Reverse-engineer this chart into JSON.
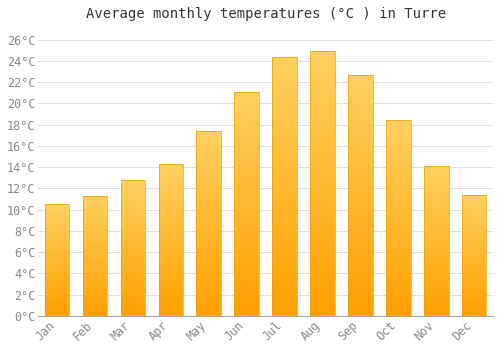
{
  "title": "Average monthly temperatures (°C ) in Turre",
  "months": [
    "Jan",
    "Feb",
    "Mar",
    "Apr",
    "May",
    "Jun",
    "Jul",
    "Aug",
    "Sep",
    "Oct",
    "Nov",
    "Dec"
  ],
  "temperatures": [
    10.5,
    11.3,
    12.8,
    14.3,
    17.4,
    21.1,
    24.4,
    24.9,
    22.7,
    18.4,
    14.1,
    11.4
  ],
  "bar_color_top": "#FFD060",
  "bar_color_bottom": "#FFA000",
  "bar_edge_color": "#E8A000",
  "background_color": "#FFFFFF",
  "grid_color": "#DDDDDD",
  "text_color": "#888888",
  "title_color": "#333333",
  "ylim": [
    0,
    27
  ],
  "ytick_step": 2,
  "title_fontsize": 10,
  "tick_fontsize": 8.5
}
